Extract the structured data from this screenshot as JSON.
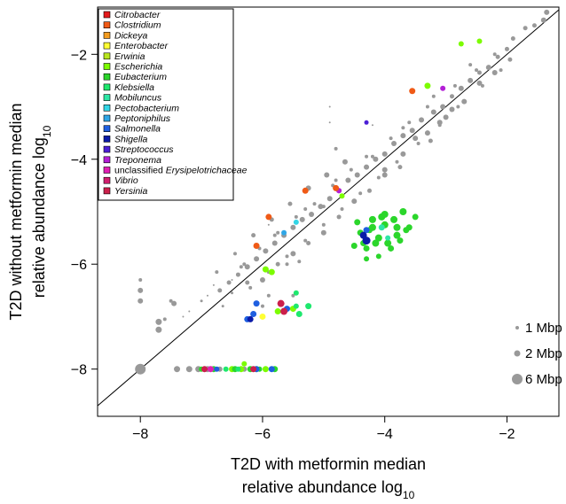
{
  "chart_data": {
    "type": "scatter",
    "xlabel_line1": "T2D with metformin median",
    "xlabel_line2": "relative abundance log",
    "xlabel_sub": "10",
    "ylabel_line1": "T2D without metformin median",
    "ylabel_line2": "relative abundance log",
    "ylabel_sub": "10",
    "xlim": [
      -8.7,
      -1.15
    ],
    "ylim": [
      -8.9,
      -1.1
    ],
    "x_ticks": [
      -8,
      -6,
      -4,
      -2
    ],
    "y_ticks": [
      -8,
      -6,
      -4,
      -2
    ],
    "x_tick_labels": [
      "−8",
      "−6",
      "−4",
      "−2"
    ],
    "y_tick_labels": [
      "−8",
      "−6",
      "−4",
      "−2"
    ],
    "diagonal": true,
    "grid": false,
    "legend_position": "top-left",
    "legend": [
      {
        "name": "Citrobacter",
        "color": "#e41a1c"
      },
      {
        "name": "Clostridium",
        "color": "#f05a16"
      },
      {
        "name": "Dickeya",
        "color": "#f39c1f"
      },
      {
        "name": "Enterobacter",
        "color": "#ffff33"
      },
      {
        "name": "Erwinia",
        "color": "#b8e61e"
      },
      {
        "name": "Escherichia",
        "color": "#7cfc00"
      },
      {
        "name": "Eubacterium",
        "color": "#2bd62b"
      },
      {
        "name": "Klebsiella",
        "color": "#1ee86e"
      },
      {
        "name": "Mobiluncus",
        "color": "#2ee6a6"
      },
      {
        "name": "Pectobacterium",
        "color": "#33d6e6"
      },
      {
        "name": "Peptoniphilus",
        "color": "#2fa6e6"
      },
      {
        "name": "Salmonella",
        "color": "#1f5fe0"
      },
      {
        "name": "Shigella",
        "color": "#0a1aa8"
      },
      {
        "name": "Streptococcus",
        "color": "#4b1fd6"
      },
      {
        "name": "Treponema",
        "color": "#b31fd6"
      },
      {
        "name_prefix": "unclassified ",
        "name": "Erysipelotrichaceae",
        "color": "#e01fb3"
      },
      {
        "name": "Vibrio",
        "color": "#d11f6e"
      },
      {
        "name": "Yersinia",
        "color": "#cc1f4b"
      }
    ],
    "size_legend": [
      {
        "label": "1 Mbp",
        "mbp": 1
      },
      {
        "label": "2 Mbp",
        "mbp": 2
      },
      {
        "label": "6 Mbp",
        "mbp": 6
      }
    ],
    "gray_points": [
      [
        -1.35,
        -1.2,
        3
      ],
      [
        -1.4,
        -1.35,
        3
      ],
      [
        -1.55,
        -1.45,
        2.5
      ],
      [
        -1.7,
        -1.5,
        2.5
      ],
      [
        -1.9,
        -1.7,
        2.5
      ],
      [
        -2.0,
        -1.9,
        2.5
      ],
      [
        -2.15,
        -2.05,
        2.5
      ],
      [
        -2.3,
        -2.25,
        3
      ],
      [
        -2.45,
        -2.35,
        2.5
      ],
      [
        -2.6,
        -2.5,
        3
      ],
      [
        -2.75,
        -2.65,
        3
      ],
      [
        -2.9,
        -2.8,
        2.5
      ],
      [
        -3.05,
        -3.0,
        3
      ],
      [
        -3.2,
        -3.1,
        3
      ],
      [
        -3.4,
        -3.25,
        3
      ],
      [
        -3.55,
        -3.45,
        3
      ],
      [
        -3.7,
        -3.55,
        3
      ],
      [
        -3.85,
        -3.7,
        3
      ],
      [
        -4.0,
        -3.9,
        3
      ],
      [
        -4.15,
        -4.0,
        3
      ],
      [
        -4.3,
        -4.15,
        3
      ],
      [
        -4.45,
        -4.3,
        3
      ],
      [
        -4.6,
        -4.4,
        3
      ],
      [
        -4.75,
        -4.6,
        3
      ],
      [
        -4.9,
        -4.75,
        3
      ],
      [
        -5.05,
        -4.9,
        3
      ],
      [
        -5.2,
        -5.05,
        3
      ],
      [
        -5.35,
        -5.15,
        3
      ],
      [
        -5.5,
        -5.3,
        3
      ],
      [
        -5.65,
        -5.45,
        3
      ],
      [
        -5.8,
        -5.6,
        3
      ],
      [
        -5.95,
        -5.75,
        3
      ],
      [
        -6.1,
        -5.9,
        3
      ],
      [
        -6.25,
        -6.05,
        3
      ],
      [
        -6.4,
        -6.2,
        2.5
      ],
      [
        -6.55,
        -6.35,
        2.5
      ],
      [
        -6.7,
        -6.5,
        2.5
      ],
      [
        -2.2,
        -2.0,
        2
      ],
      [
        -2.5,
        -2.3,
        2
      ],
      [
        -2.85,
        -2.6,
        2
      ],
      [
        -3.3,
        -3.0,
        2
      ],
      [
        -3.6,
        -3.3,
        2
      ],
      [
        -3.9,
        -3.6,
        2
      ],
      [
        -4.2,
        -3.95,
        2
      ],
      [
        -4.55,
        -4.2,
        2
      ],
      [
        -4.85,
        -4.5,
        2
      ],
      [
        -5.15,
        -4.85,
        2
      ],
      [
        -5.45,
        -5.1,
        2
      ],
      [
        -5.75,
        -5.4,
        2
      ],
      [
        -6.05,
        -5.7,
        2
      ],
      [
        -6.35,
        -6.05,
        2
      ],
      [
        -2.1,
        -2.3,
        2
      ],
      [
        -2.4,
        -2.6,
        2
      ],
      [
        -2.8,
        -3.0,
        2
      ],
      [
        -3.1,
        -3.35,
        2
      ],
      [
        -3.45,
        -3.7,
        2
      ],
      [
        -3.8,
        -4.05,
        2
      ],
      [
        -4.1,
        -4.35,
        2
      ],
      [
        -4.4,
        -4.65,
        2
      ],
      [
        -4.7,
        -4.95,
        2
      ],
      [
        -5.0,
        -5.25,
        2
      ],
      [
        -5.3,
        -5.55,
        2
      ],
      [
        -5.6,
        -5.85,
        2
      ],
      [
        -5.9,
        -6.15,
        2
      ],
      [
        -6.2,
        -6.45,
        2
      ],
      [
        -3.0,
        -3.2,
        3
      ],
      [
        -3.5,
        -3.6,
        3
      ],
      [
        -4.0,
        -4.2,
        3
      ],
      [
        -4.5,
        -4.8,
        3
      ],
      [
        -5.0,
        -5.4,
        3
      ],
      [
        -5.5,
        -5.8,
        3
      ],
      [
        -6.0,
        -6.3,
        3
      ],
      [
        -2.6,
        -2.2,
        2
      ],
      [
        -3.2,
        -2.8,
        2
      ],
      [
        -3.7,
        -3.4,
        2
      ],
      [
        -4.3,
        -3.95,
        2
      ],
      [
        -4.8,
        -4.4,
        2
      ],
      [
        -5.3,
        -4.95,
        2
      ],
      [
        -5.8,
        -5.45,
        2
      ],
      [
        -6.3,
        -6.0,
        2
      ],
      [
        -4.9,
        -3.0,
        1
      ],
      [
        -4.2,
        -3.35,
        1
      ],
      [
        -4.9,
        -3.3,
        1
      ],
      [
        -5.0,
        -4.9,
        2
      ],
      [
        -5.9,
        -5.25,
        1
      ],
      [
        -5.4,
        -5.95,
        2
      ],
      [
        -5.6,
        -6.0,
        2
      ],
      [
        -6.5,
        -6.3,
        1
      ],
      [
        -6.5,
        -6.55,
        1.5
      ],
      [
        -6.8,
        -6.4,
        1
      ],
      [
        -6.65,
        -6.8,
        1.5
      ],
      [
        -6.9,
        -6.6,
        1
      ],
      [
        -7.0,
        -6.7,
        1.5
      ],
      [
        -7.2,
        -6.9,
        1
      ],
      [
        -7.3,
        -7.0,
        1
      ],
      [
        -5.5,
        -6.6,
        2
      ],
      [
        -5.9,
        -6.6,
        2
      ],
      [
        -6.0,
        -6.8,
        2
      ],
      [
        -7.5,
        -6.7,
        2
      ],
      [
        -7.45,
        -6.75,
        3
      ],
      [
        -7.6,
        -7.05,
        2
      ],
      [
        -7.7,
        -7.1,
        3.5
      ],
      [
        -7.7,
        -7.25,
        3.5
      ],
      [
        -8.0,
        -6.3,
        2
      ],
      [
        -8.0,
        -6.5,
        3
      ],
      [
        -8.0,
        -6.7,
        3
      ],
      [
        -8.0,
        -8.0,
        6
      ],
      [
        -7.4,
        -8.0,
        3.5
      ],
      [
        -7.2,
        -8.0,
        3.5
      ],
      [
        -7.05,
        -8.0,
        3.5
      ],
      [
        -6.9,
        -8.0,
        3.5
      ],
      [
        -6.7,
        -8.0,
        3
      ],
      [
        -6.3,
        -8.0,
        3
      ],
      [
        -6.1,
        -8.0,
        3
      ],
      [
        -5.95,
        -8.0,
        3
      ],
      [
        -4.8,
        -3.8,
        2
      ],
      [
        -4.0,
        -4.3,
        3
      ],
      [
        -3.7,
        -3.9,
        3
      ],
      [
        -3.3,
        -3.5,
        3
      ],
      [
        -3.1,
        -3.3,
        3
      ],
      [
        -2.9,
        -3.05,
        3
      ],
      [
        -2.7,
        -2.9,
        3
      ],
      [
        -2.45,
        -2.55,
        3
      ],
      [
        -2.2,
        -2.35,
        3
      ],
      [
        -1.95,
        -2.1,
        2.5
      ],
      [
        -4.65,
        -4.05,
        3
      ],
      [
        -4.95,
        -4.3,
        3
      ],
      [
        -5.25,
        -4.55,
        3
      ],
      [
        -5.55,
        -4.85,
        2.5
      ],
      [
        -5.85,
        -5.15,
        2.5
      ],
      [
        -6.15,
        -5.45,
        2.5
      ],
      [
        -6.45,
        -5.8,
        2
      ],
      [
        -6.75,
        -6.15,
        2
      ],
      [
        -3.25,
        -3.65,
        2.5
      ],
      [
        -3.75,
        -4.15,
        2.5
      ],
      [
        -4.25,
        -4.6,
        2.5
      ],
      [
        -4.75,
        -5.1,
        2.5
      ],
      [
        -5.25,
        -5.6,
        2.5
      ],
      [
        -5.75,
        -6.0,
        2.5
      ],
      [
        -6.25,
        -6.35,
        2.5
      ]
    ],
    "colored_points": [
      {
        "s": 5,
        "pts": [
          [
            -2.75,
            -1.8,
            3
          ],
          [
            -2.45,
            -1.75,
            3
          ],
          [
            -3.3,
            -2.6,
            3.5
          ],
          [
            -4.7,
            -4.7,
            3
          ],
          [
            -5.95,
            -6.1,
            3.5
          ],
          [
            -5.85,
            -6.15,
            3.5
          ],
          [
            -5.75,
            -6.9,
            3.5
          ],
          [
            -5.5,
            -6.85,
            3.5
          ],
          [
            -6.5,
            -8.0,
            3.5
          ],
          [
            -6.35,
            -8.0,
            3.5
          ],
          [
            -6.3,
            -7.9,
            3
          ],
          [
            -6.1,
            -8.0,
            3.5
          ],
          [
            -5.95,
            -8.0,
            3.5
          ]
        ]
      },
      {
        "s": 6,
        "pts": [
          [
            -4.2,
            -5.3,
            4
          ],
          [
            -4.0,
            -5.25,
            4
          ],
          [
            -3.8,
            -5.3,
            4
          ],
          [
            -3.7,
            -5.0,
            4
          ],
          [
            -3.95,
            -5.6,
            4
          ],
          [
            -4.1,
            -5.5,
            4
          ],
          [
            -3.6,
            -5.3,
            3.5
          ],
          [
            -3.7,
            -5.0,
            3.5
          ],
          [
            -4.05,
            -5.1,
            4
          ],
          [
            -4.15,
            -5.6,
            4
          ],
          [
            -4.3,
            -5.7,
            3.5
          ],
          [
            -3.9,
            -5.7,
            3.5
          ],
          [
            -3.85,
            -5.15,
            4
          ],
          [
            -4.25,
            -5.35,
            3.5
          ],
          [
            -4.4,
            -5.4,
            3.5
          ],
          [
            -4.35,
            -5.6,
            3.5
          ],
          [
            -4.5,
            -5.65,
            3.5
          ],
          [
            -3.65,
            -5.35,
            3.5
          ],
          [
            -3.5,
            -5.1,
            3.5
          ],
          [
            -4.1,
            -5.85,
            3
          ],
          [
            -4.0,
            -5.05,
            4
          ],
          [
            -4.2,
            -5.15,
            4
          ],
          [
            -4.45,
            -5.2,
            3.5
          ],
          [
            -3.8,
            -5.45,
            4
          ],
          [
            -3.75,
            -5.55,
            3.5
          ],
          [
            -4.3,
            -5.9,
            3
          ],
          [
            -6.8,
            -8.0,
            3.5
          ],
          [
            -6.45,
            -8.0,
            3.5
          ],
          [
            -6.2,
            -8.0,
            3.5
          ],
          [
            -6.05,
            -8.0,
            3
          ],
          [
            -5.8,
            -8.0,
            3.5
          ],
          [
            -7.0,
            -8.0,
            3
          ]
        ]
      },
      {
        "s": 7,
        "pts": [
          [
            -5.45,
            -6.55,
            3
          ],
          [
            -5.45,
            -6.8,
            3
          ],
          [
            -5.25,
            -6.8,
            3.5
          ],
          [
            -5.4,
            -6.95,
            3.5
          ],
          [
            -6.4,
            -8.0,
            3
          ],
          [
            -6.6,
            -8.0,
            3
          ]
        ]
      },
      {
        "s": 8,
        "pts": [
          [
            -4.05,
            -5.3,
            3.5
          ],
          [
            -3.95,
            -5.5,
            3
          ]
        ]
      },
      {
        "s": 9,
        "pts": [
          [
            -5.45,
            -5.2,
            3
          ]
        ]
      },
      {
        "s": 10,
        "pts": [
          [
            -5.65,
            -5.4,
            3
          ]
        ]
      },
      {
        "s": 11,
        "pts": [
          [
            -6.1,
            -6.75,
            3.5
          ],
          [
            -6.15,
            -6.95,
            3.5
          ],
          [
            -6.25,
            -7.05,
            3.5
          ],
          [
            -5.6,
            -6.85,
            3.5
          ],
          [
            -6.1,
            -8.0,
            3.5
          ],
          [
            -5.85,
            -8.0,
            3.5
          ],
          [
            -4.3,
            -5.35,
            3.5
          ],
          [
            -6.75,
            -8.0,
            3
          ]
        ]
      },
      {
        "s": 12,
        "pts": [
          [
            -4.3,
            -5.55,
            4.5
          ],
          [
            -4.35,
            -5.45,
            4
          ],
          [
            -6.2,
            -7.05,
            3.5
          ]
        ]
      },
      {
        "s": 13,
        "pts": [
          [
            -4.3,
            -3.3,
            2.5
          ]
        ]
      },
      {
        "s": 14,
        "pts": [
          [
            -3.05,
            -2.65,
            3
          ],
          [
            -4.75,
            -4.6,
            3
          ]
        ]
      },
      {
        "s": 15,
        "pts": [
          [
            -6.85,
            -8.0,
            3.5
          ]
        ]
      },
      {
        "s": 17,
        "pts": [
          [
            -5.7,
            -6.75,
            4
          ],
          [
            -5.65,
            -6.9,
            4
          ],
          [
            -6.15,
            -8.0,
            3.5
          ],
          [
            -6.95,
            -8.0,
            3.5
          ]
        ]
      },
      {
        "s": 3,
        "pts": [
          [
            -6.0,
            -7.0,
            3.5
          ]
        ]
      },
      {
        "s": 1,
        "pts": [
          [
            -5.3,
            -4.6,
            3.5
          ],
          [
            -5.9,
            -5.1,
            3.5
          ],
          [
            -6.1,
            -5.65,
            3.5
          ],
          [
            -4.8,
            -4.55,
            3.5
          ],
          [
            -3.55,
            -2.7,
            3.5
          ]
        ]
      }
    ]
  }
}
